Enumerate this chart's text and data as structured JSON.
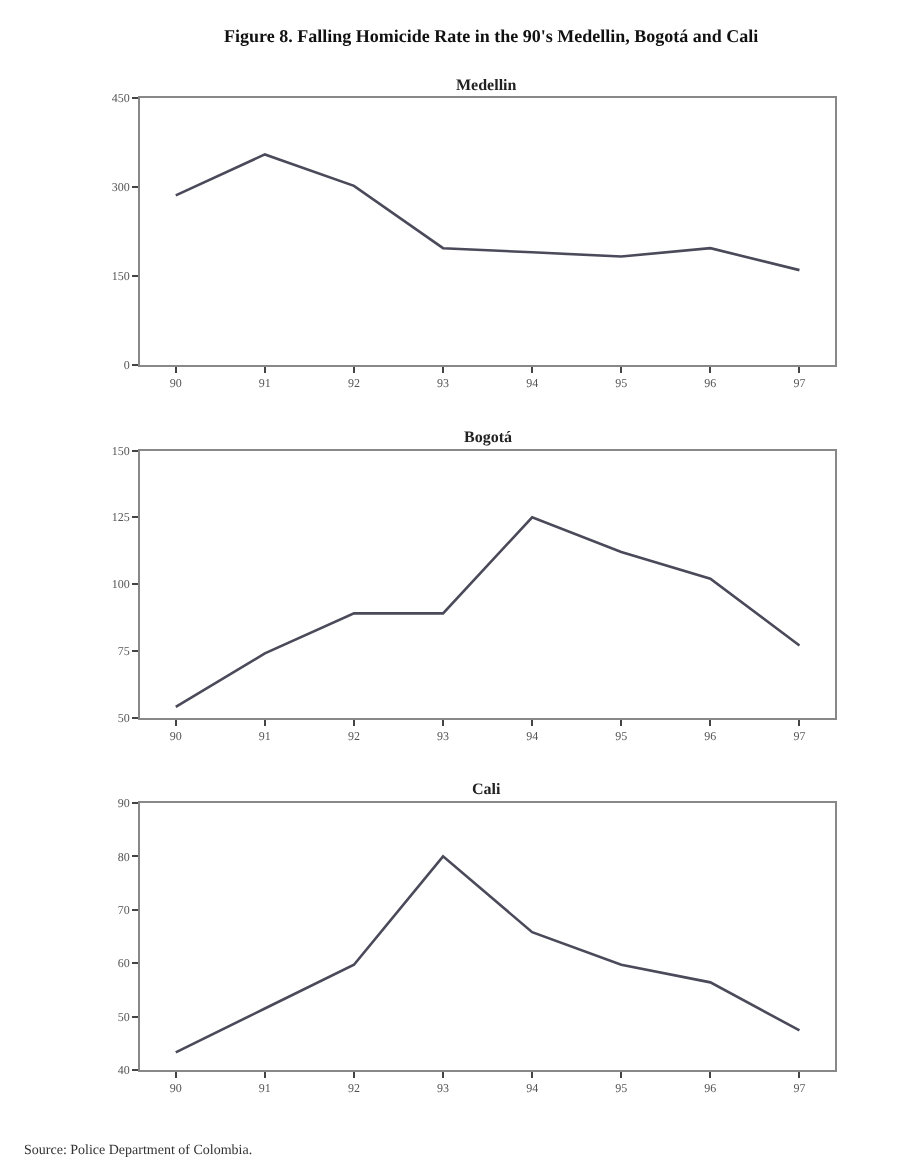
{
  "chart_data": [
    {
      "type": "line",
      "title": "Figure 8. Falling Homicide Rate in the 90's Medellin, Bogotá and Cali",
      "subtitle": "Medellin",
      "categories": [
        "90",
        "91",
        "92",
        "93",
        "94",
        "95",
        "96",
        "97"
      ],
      "series": [
        {
          "color": "#4a4a5a",
          "values": [
            286,
            355,
            302,
            197,
            190,
            183,
            197,
            160
          ]
        }
      ],
      "ylim": [
        0,
        450
      ],
      "yticks": [
        0,
        150,
        300,
        450
      ],
      "marker": "none",
      "line_style": "solid"
    },
    {
      "type": "line",
      "subtitle": "Bogotá",
      "categories": [
        "90",
        "91",
        "92",
        "93",
        "94",
        "95",
        "96",
        "97"
      ],
      "series": [
        {
          "color": "#4a4a5a",
          "values": [
            54,
            74,
            89,
            89,
            125,
            112,
            102,
            77
          ]
        }
      ],
      "ylim": [
        50,
        150
      ],
      "yticks": [
        50,
        75,
        100,
        125,
        150
      ],
      "marker": "none",
      "line_style": "solid"
    },
    {
      "type": "line",
      "subtitle": "Cali",
      "categories": [
        "90",
        "91",
        "92",
        "93",
        "94",
        "95",
        "96",
        "97"
      ],
      "series": [
        {
          "color": "#4a4a5a",
          "values": [
            43.3,
            51.5,
            59.7,
            80,
            65.8,
            59.7,
            56.4,
            47.4
          ]
        }
      ],
      "ylim": [
        40,
        90
      ],
      "yticks": [
        40,
        50,
        60,
        70,
        80,
        90
      ],
      "marker": "none",
      "line_style": "solid",
      "annotations": [
        "Source: Police Department of Colombia."
      ]
    }
  ]
}
